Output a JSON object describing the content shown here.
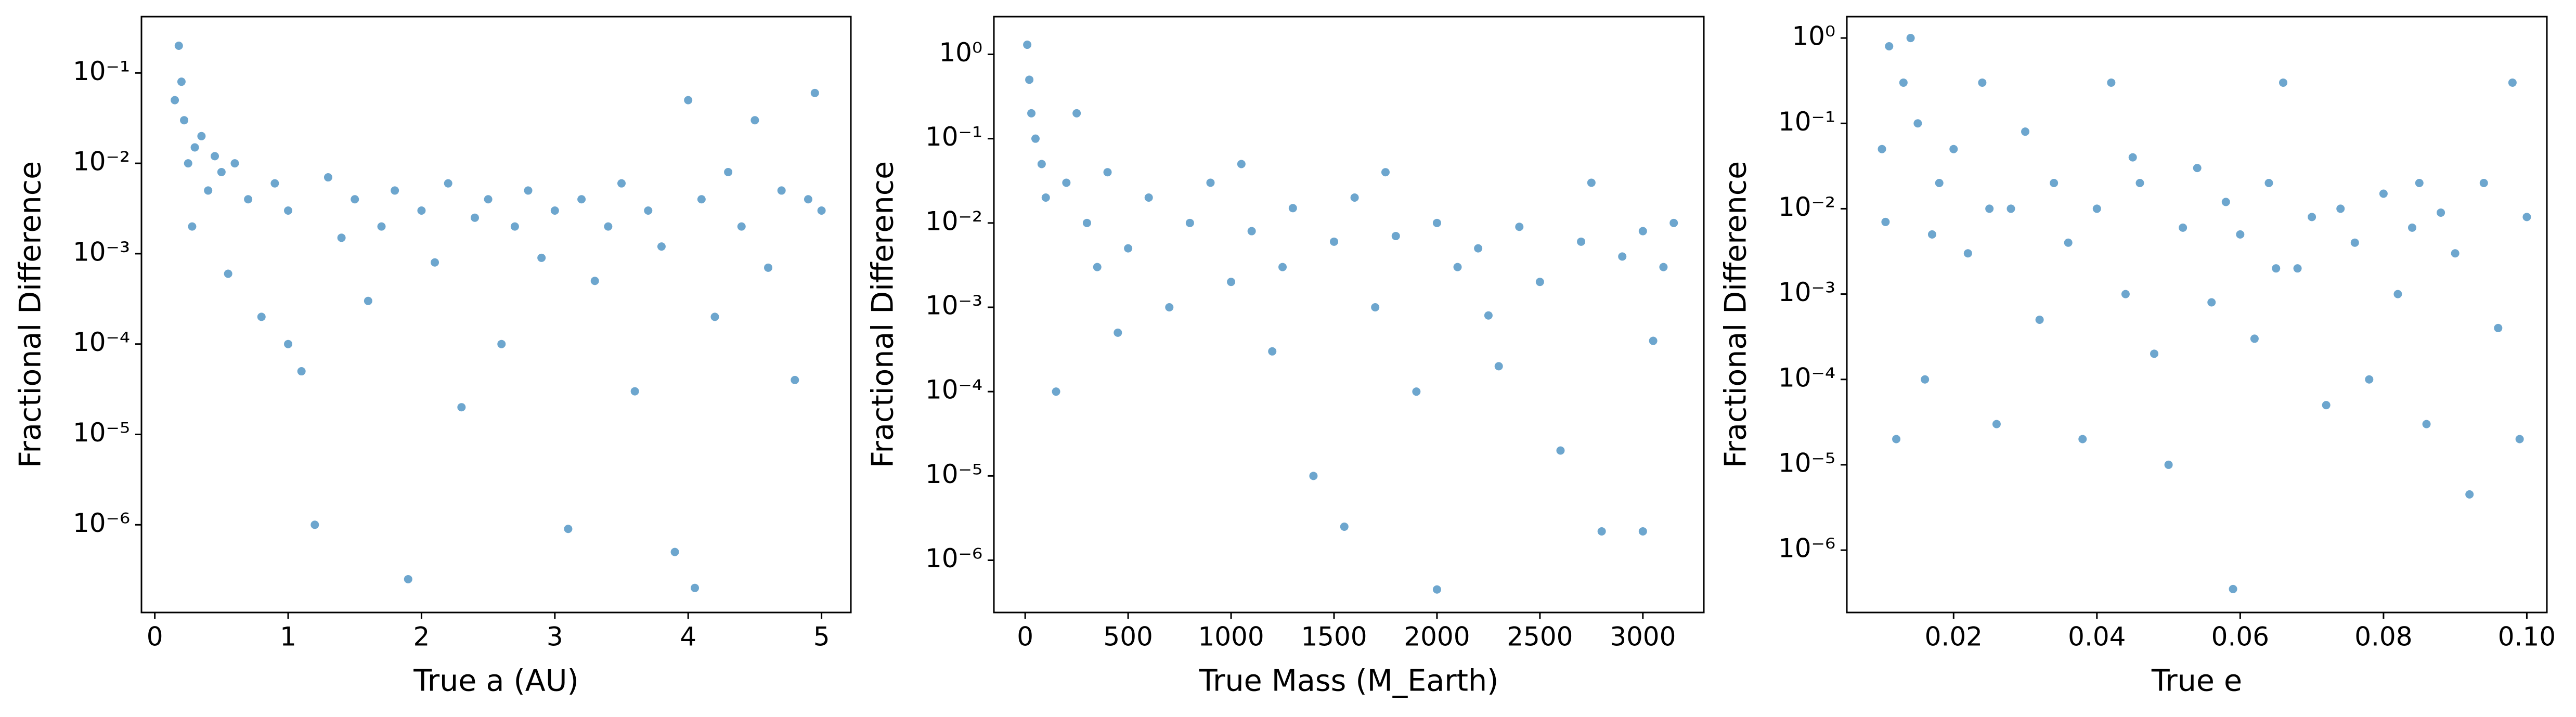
{
  "chart_data": [
    {
      "type": "scatter",
      "x_label": "True a (AU)",
      "y_label": "Fractional Difference",
      "color": "#1f77b4",
      "yscale": "log",
      "xlim": [
        -0.1,
        5.22
      ],
      "ylim": [
        1.07e-07,
        0.42
      ],
      "xticks": [
        0,
        1,
        2,
        3,
        4,
        5
      ],
      "yticks": [
        {
          "value": 1e-06,
          "label": "10⁻⁶"
        },
        {
          "value": 1e-05,
          "label": "10⁻⁵"
        },
        {
          "value": 0.0001,
          "label": "10⁻⁴"
        },
        {
          "value": 0.001,
          "label": "10⁻³"
        },
        {
          "value": 0.01,
          "label": "10⁻²"
        },
        {
          "value": 0.1,
          "label": "10⁻¹"
        }
      ],
      "x": [
        0.18,
        0.2,
        0.22,
        0.25,
        0.28,
        0.3,
        0.35,
        0.4,
        0.45,
        0.5,
        0.55,
        0.6,
        0.7,
        0.8,
        0.9,
        1.0,
        1.1,
        1.2,
        1.3,
        1.4,
        1.5,
        1.6,
        1.7,
        1.8,
        1.9,
        2.0,
        2.1,
        2.2,
        2.3,
        2.4,
        2.5,
        2.6,
        2.7,
        2.8,
        2.9,
        3.0,
        3.1,
        3.2,
        3.3,
        3.4,
        3.5,
        3.6,
        3.7,
        3.8,
        3.9,
        4.0,
        4.05,
        4.1,
        4.2,
        4.3,
        4.4,
        4.5,
        4.6,
        4.7,
        4.8,
        4.9,
        4.95,
        5.0,
        0.15,
        1.0
      ],
      "y": [
        0.2,
        0.08,
        0.03,
        0.01,
        0.002,
        0.015,
        0.02,
        0.005,
        0.012,
        0.008,
        0.0006,
        0.01,
        0.004,
        0.0002,
        0.006,
        0.003,
        5e-05,
        1e-06,
        0.007,
        0.0015,
        0.004,
        0.0003,
        0.002,
        0.005,
        2.5e-07,
        0.003,
        0.0008,
        0.006,
        2e-05,
        0.0025,
        0.004,
        0.0001,
        0.002,
        0.005,
        0.0009,
        0.003,
        9e-07,
        0.004,
        0.0005,
        0.002,
        0.006,
        3e-05,
        0.003,
        0.0012,
        5e-07,
        0.05,
        2e-07,
        0.004,
        0.0002,
        0.008,
        0.002,
        0.03,
        0.0007,
        0.005,
        4e-05,
        0.004,
        0.06,
        0.003,
        0.05,
        0.0001
      ]
    },
    {
      "type": "scatter",
      "x_label": "True Mass (M_Earth)",
      "y_label": "Fractional Difference",
      "color": "#1f77b4",
      "yscale": "log",
      "xlim": [
        -152,
        3296
      ],
      "ylim": [
        2.4e-07,
        2.8
      ],
      "xticks": [
        0,
        500,
        1000,
        1500,
        2000,
        2500,
        3000
      ],
      "yticks": [
        {
          "value": 1e-06,
          "label": "10⁻⁶"
        },
        {
          "value": 1e-05,
          "label": "10⁻⁵"
        },
        {
          "value": 0.0001,
          "label": "10⁻⁴"
        },
        {
          "value": 0.001,
          "label": "10⁻³"
        },
        {
          "value": 0.01,
          "label": "10⁻²"
        },
        {
          "value": 0.1,
          "label": "10⁻¹"
        },
        {
          "value": 1,
          "label": "10⁰"
        }
      ],
      "x": [
        10,
        20,
        30,
        50,
        80,
        100,
        150,
        200,
        300,
        400,
        500,
        600,
        700,
        800,
        900,
        1000,
        1100,
        1200,
        1300,
        1400,
        1500,
        1550,
        1600,
        1700,
        1800,
        1900,
        2000,
        2000,
        2100,
        2200,
        2300,
        2400,
        2500,
        2600,
        2700,
        2800,
        2900,
        3000,
        3000,
        3100,
        3150,
        250,
        450,
        1050,
        2250,
        2750,
        3050,
        1750,
        1250,
        350
      ],
      "y": [
        1.3,
        0.5,
        0.2,
        0.1,
        0.05,
        0.02,
        0.0001,
        0.03,
        0.01,
        0.04,
        0.005,
        0.02,
        0.001,
        0.01,
        0.03,
        0.002,
        0.008,
        0.0003,
        0.015,
        1e-05,
        0.006,
        2.5e-06,
        0.02,
        0.001,
        0.007,
        0.0001,
        4.5e-07,
        0.01,
        0.003,
        0.005,
        0.0002,
        0.009,
        0.002,
        2e-05,
        0.006,
        2.2e-06,
        0.004,
        2.2e-06,
        0.008,
        0.003,
        0.01,
        0.2,
        0.0005,
        0.05,
        0.0008,
        0.03,
        0.0004,
        0.04,
        0.003,
        0.003
      ]
    },
    {
      "type": "scatter",
      "x_label": "True e",
      "y_label": "Fractional Difference",
      "color": "#1f77b4",
      "yscale": "log",
      "xlim": [
        0.0051,
        0.1028
      ],
      "ylim": [
        1.86e-07,
        1.78
      ],
      "xticks": [
        0.02,
        0.04,
        0.06,
        0.08,
        {
          "value": 0.1,
          "label": "0.10"
        }
      ],
      "yticks": [
        {
          "value": 1e-06,
          "label": "10⁻⁶"
        },
        {
          "value": 1e-05,
          "label": "10⁻⁵"
        },
        {
          "value": 0.0001,
          "label": "10⁻⁴"
        },
        {
          "value": 0.001,
          "label": "10⁻³"
        },
        {
          "value": 0.01,
          "label": "10⁻²"
        },
        {
          "value": 0.1,
          "label": "10⁻¹"
        },
        {
          "value": 1,
          "label": "10⁰"
        }
      ],
      "x": [
        0.01,
        0.011,
        0.012,
        0.013,
        0.014,
        0.015,
        0.016,
        0.018,
        0.02,
        0.022,
        0.024,
        0.026,
        0.028,
        0.03,
        0.032,
        0.034,
        0.036,
        0.038,
        0.04,
        0.042,
        0.044,
        0.046,
        0.048,
        0.05,
        0.052,
        0.054,
        0.056,
        0.058,
        0.059,
        0.06,
        0.062,
        0.064,
        0.066,
        0.068,
        0.07,
        0.072,
        0.074,
        0.076,
        0.078,
        0.08,
        0.082,
        0.084,
        0.086,
        0.088,
        0.09,
        0.092,
        0.094,
        0.096,
        0.098,
        0.099,
        0.1,
        0.0105,
        0.017,
        0.025,
        0.045,
        0.065,
        0.085
      ],
      "y": [
        0.05,
        0.8,
        2e-05,
        0.3,
        1.0,
        0.1,
        0.0001,
        0.02,
        0.05,
        0.003,
        0.3,
        3e-05,
        0.01,
        0.08,
        0.0005,
        0.02,
        0.004,
        2e-05,
        0.01,
        0.3,
        0.001,
        0.02,
        0.0002,
        1e-05,
        0.006,
        0.03,
        0.0008,
        0.012,
        3.5e-07,
        0.005,
        0.0003,
        0.02,
        0.3,
        0.002,
        0.008,
        5e-05,
        0.01,
        0.004,
        0.0001,
        0.015,
        0.001,
        0.006,
        3e-05,
        0.009,
        0.003,
        4.5e-06,
        0.02,
        0.0004,
        0.3,
        2e-05,
        0.008,
        0.007,
        0.005,
        0.01,
        0.04,
        0.002,
        0.02
      ]
    }
  ]
}
